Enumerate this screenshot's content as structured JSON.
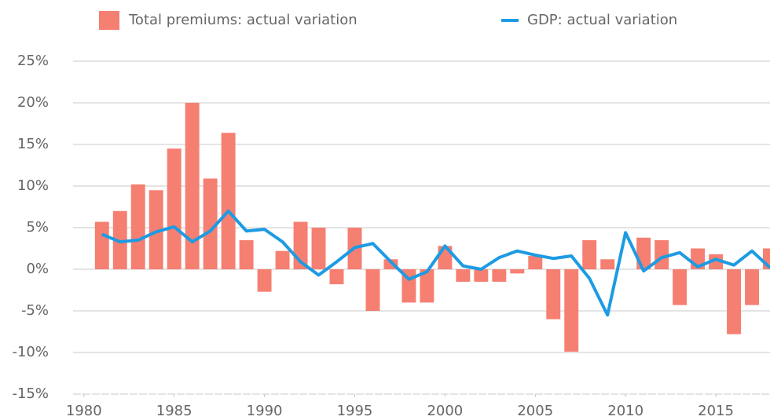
{
  "chart_data": {
    "type": "bar",
    "x": [
      1981,
      1982,
      1983,
      1984,
      1985,
      1986,
      1987,
      1988,
      1989,
      1990,
      1991,
      1992,
      1993,
      1994,
      1995,
      1996,
      1997,
      1998,
      1999,
      2000,
      2001,
      2002,
      2003,
      2004,
      2005,
      2006,
      2007,
      2008,
      2009,
      2010,
      2011,
      2012,
      2013,
      2014,
      2015,
      2016,
      2017,
      2018
    ],
    "series": [
      {
        "name": "Total premiums: actual variation",
        "type": "bar",
        "color": "#f57f71",
        "values": [
          5.7,
          7.0,
          10.2,
          9.5,
          14.5,
          20,
          10.9,
          16.4,
          3.5,
          -2.7,
          2.2,
          5.7,
          5.0,
          -1.8,
          5.0,
          -5.0,
          1.2,
          -4.0,
          -4.0,
          2.8,
          -1.5,
          -1.5,
          -1.5,
          -0.5,
          1.6,
          -6.0,
          -9.9,
          3.5,
          1.2,
          0,
          3.8,
          3.5,
          -4.3,
          2.5,
          1.8,
          -7.8,
          -4.3,
          2.5
        ]
      },
      {
        "name": "GDP: actual variation",
        "type": "line",
        "color": "#1d9be3",
        "values": [
          4.2,
          3.3,
          3.5,
          4.5,
          5.1,
          3.3,
          4.6,
          7.0,
          4.6,
          4.8,
          3.3,
          0.9,
          -0.7,
          0.9,
          2.6,
          3.1,
          0.9,
          -1.2,
          -0.3,
          2.8,
          0.4,
          0,
          1.4,
          2.2,
          1.7,
          1.3,
          1.6,
          -1.1,
          -5.5,
          4.4,
          -0.2,
          1.4,
          2.0,
          0.3,
          1.2,
          0.5,
          2.2,
          0.2
        ]
      }
    ],
    "xlim": [
      1979.4,
      2018
    ],
    "xticks": [
      1980,
      1985,
      1990,
      1995,
      2000,
      2005,
      2010,
      2015
    ],
    "ylim": [
      -15,
      25
    ],
    "yticks": [
      {
        "value": -15,
        "label": "-15%"
      },
      {
        "value": -10,
        "label": "-10%"
      },
      {
        "value": -5,
        "label": "-5%"
      },
      {
        "value": 0,
        "label": "0%"
      },
      {
        "value": 5,
        "label": "5%"
      },
      {
        "value": 10,
        "label": "10%"
      },
      {
        "value": 15,
        "label": "15%"
      },
      {
        "value": 20,
        "label": "20%"
      },
      {
        "value": 25,
        "label": "25%"
      }
    ],
    "grid": true
  }
}
